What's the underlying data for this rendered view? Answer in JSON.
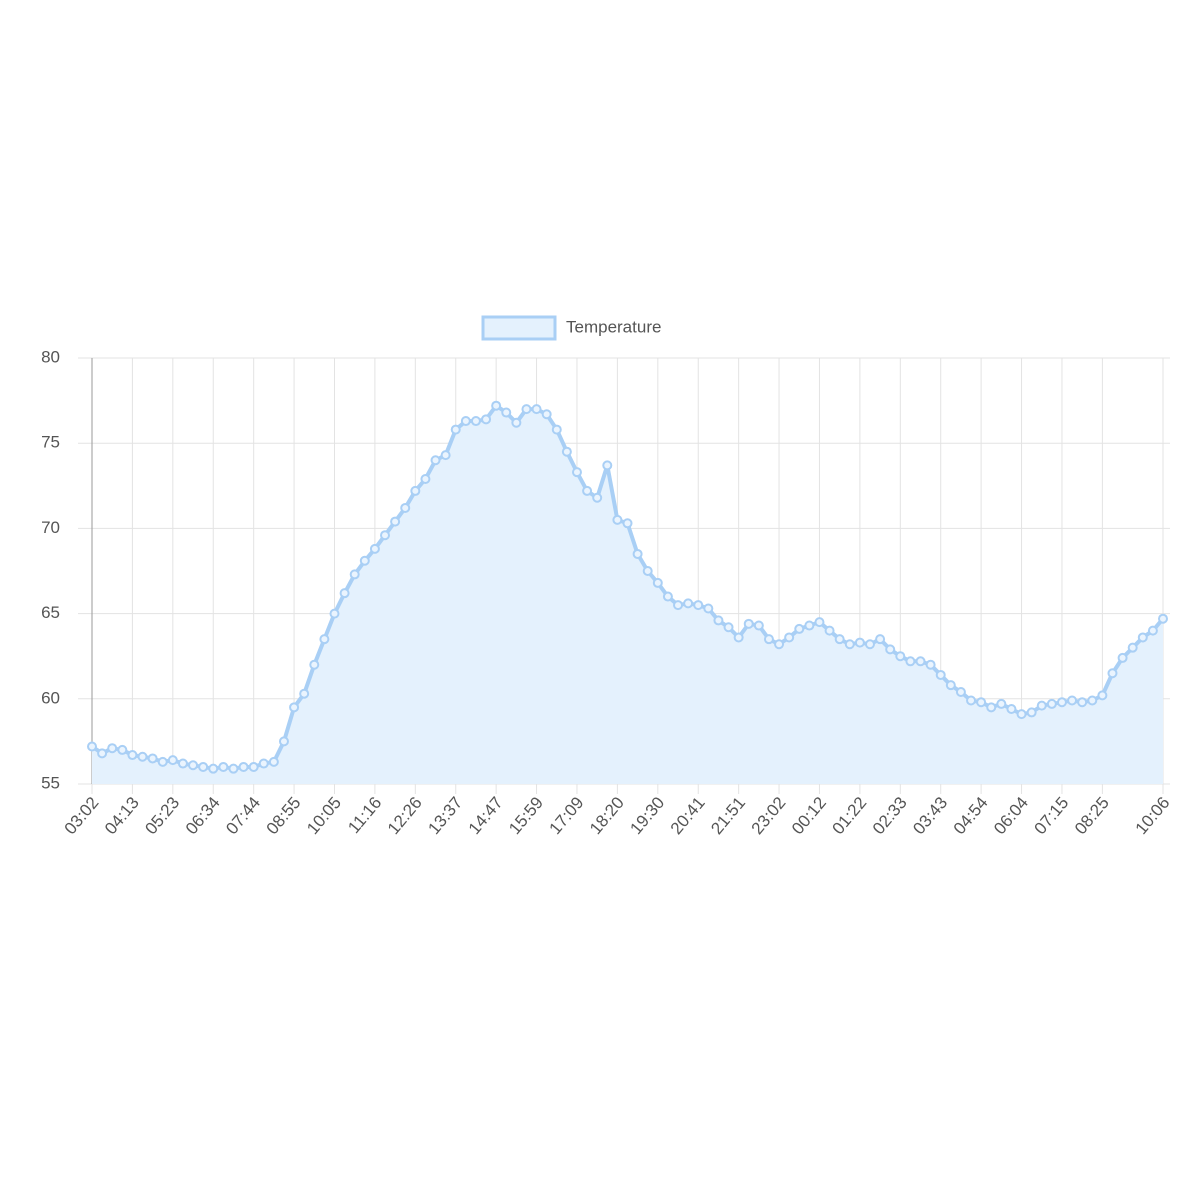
{
  "chart_data": {
    "type": "line",
    "categories": [
      "03:02",
      null,
      null,
      null,
      "04:13",
      null,
      null,
      null,
      "05:23",
      null,
      null,
      null,
      "06:34",
      null,
      null,
      null,
      "07:44",
      null,
      null,
      null,
      "08:55",
      null,
      null,
      null,
      "10:05",
      null,
      null,
      null,
      "11:16",
      null,
      null,
      null,
      "12:26",
      null,
      null,
      null,
      "13:37",
      null,
      null,
      null,
      "14:47",
      null,
      null,
      null,
      "15:59",
      null,
      null,
      null,
      "17:09",
      null,
      null,
      null,
      "18:20",
      null,
      null,
      null,
      "19:30",
      null,
      null,
      null,
      "20:41",
      null,
      null,
      null,
      "21:51",
      null,
      null,
      null,
      "23:02",
      null,
      null,
      null,
      "00:12",
      null,
      null,
      null,
      "01:22",
      null,
      null,
      null,
      "02:33",
      null,
      null,
      null,
      "03:43",
      null,
      null,
      null,
      "04:54",
      null,
      null,
      null,
      "06:04",
      null,
      null,
      null,
      "07:15",
      null,
      null,
      null,
      "08:25",
      null,
      null,
      null,
      null,
      null,
      "10:06"
    ],
    "series": [
      {
        "name": "Temperature",
        "color": "#a9cff5",
        "fill": "#e4f1fd",
        "values": [
          57.2,
          56.8,
          57.1,
          57.0,
          56.7,
          56.6,
          56.5,
          56.3,
          56.4,
          56.2,
          56.1,
          56.0,
          55.9,
          56.0,
          55.9,
          56.0,
          56.0,
          56.2,
          56.3,
          57.5,
          59.5,
          60.3,
          62.0,
          63.5,
          65.0,
          66.2,
          67.3,
          68.1,
          68.8,
          69.6,
          70.4,
          71.2,
          72.2,
          72.9,
          74.0,
          74.3,
          75.8,
          76.3,
          76.3,
          76.4,
          77.2,
          76.8,
          76.2,
          77.0,
          77.0,
          76.7,
          75.8,
          74.5,
          73.3,
          72.2,
          71.8,
          73.7,
          70.5,
          70.3,
          68.5,
          67.5,
          66.8,
          66.0,
          65.5,
          65.6,
          65.5,
          65.3,
          64.6,
          64.2,
          63.6,
          64.4,
          64.3,
          63.5,
          63.2,
          63.6,
          64.1,
          64.3,
          64.5,
          64.0,
          63.5,
          63.2,
          63.3,
          63.2,
          63.5,
          62.9,
          62.5,
          62.2,
          62.2,
          62.0,
          61.4,
          60.8,
          60.4,
          59.9,
          59.8,
          59.5,
          59.7,
          59.4,
          59.1,
          59.2,
          59.6,
          59.7,
          59.8,
          59.9,
          59.8,
          59.9,
          60.2,
          61.5,
          62.4,
          63.0,
          63.6,
          64.0,
          64.7
        ]
      }
    ],
    "ylim": [
      55,
      80
    ],
    "yticks": [
      55,
      60,
      65,
      70,
      75,
      80
    ],
    "grid": true,
    "legend": "top"
  }
}
